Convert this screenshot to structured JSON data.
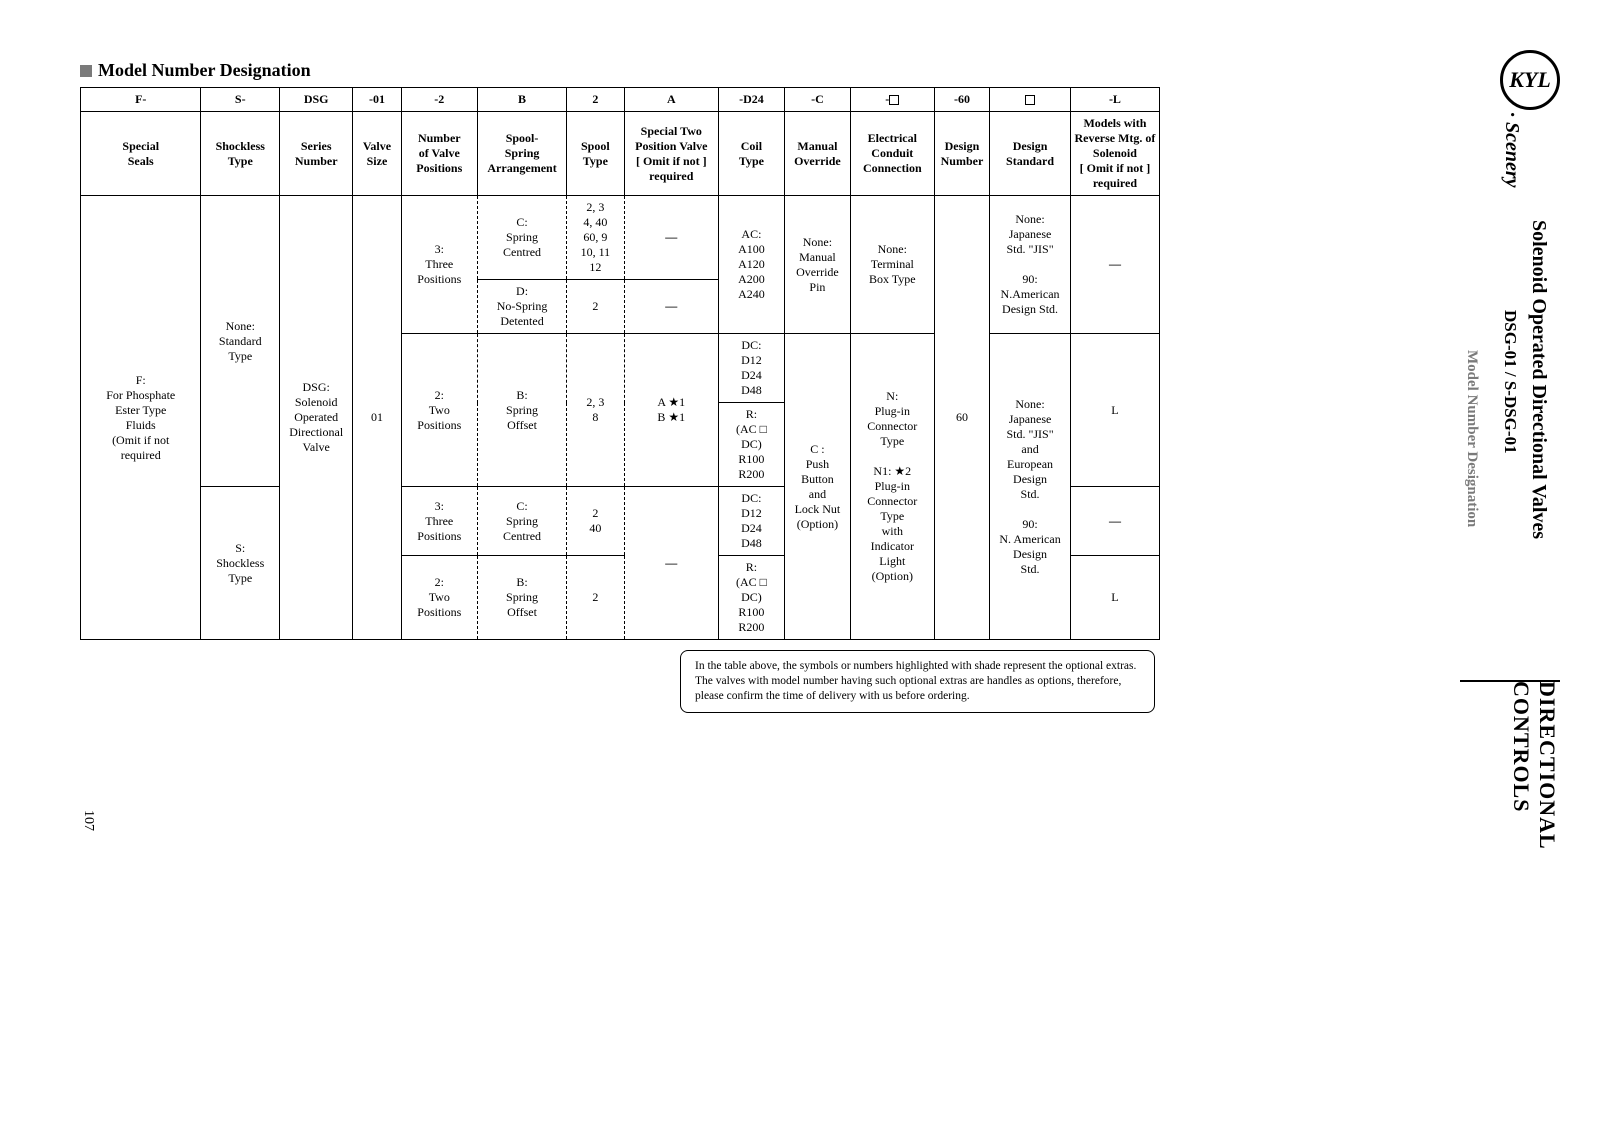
{
  "section_title": "Model Number Designation",
  "page_number": "107",
  "header_row1": [
    "F-",
    "S-",
    "DSG",
    "-01",
    "-2",
    "B",
    "2",
    "A",
    "-D24",
    "-C",
    "-□",
    "-60",
    "□",
    "-L"
  ],
  "header_row2": [
    "Special\nSeals",
    "Shockless\nType",
    "Series\nNumber",
    "Valve\nSize",
    "Number\nof Valve\nPositions",
    "Spool-\nSpring\nArrangement",
    "Spool\nType",
    "Special Two\nPosition Valve\n[ Omit if not ]\n  required",
    "Coil\nType",
    "Manual\nOverride",
    "Electrical\nConduit\nConnection",
    "Design\nNumber",
    "Design\nStandard",
    "Models with\nReverse Mtg. of\nSolenoid\n[ Omit if not ]\n  required"
  ],
  "col_F": "F:\nFor Phosphate\nEster Type\nFluids\n(Omit if not\nrequired",
  "col_S_none": "None:\nStandard\nType",
  "col_S_s": "S:\nShockless\nType",
  "col_DSG": "DSG:\nSolenoid\nOperated\nDirectional\nValve",
  "col_01": "01",
  "pos_3": "3:\nThree\nPositions",
  "pos_2": "2:\nTwo\nPositions",
  "spring_C": "C:\nSpring\nCentred",
  "spring_D": "D:\nNo-Spring\nDetented",
  "spring_B": "B:\nSpring\nOffset",
  "spool_a": "2, 3\n4, 40\n60, 9\n10, 11\n12",
  "spool_b": "2",
  "spool_c": "2, 3\n8",
  "spool_d": "2\n40",
  "spool_e": "2",
  "ab_mark": "A ★1\nB ★1",
  "dash_sym": "—",
  "coil_AC": "AC:\nA100\nA120\nA200\nA240",
  "coil_DC": "DC:\nD12\nD24\nD48",
  "coil_R": "R:\n(AC □\n   DC)\nR100\nR200",
  "coil_DC2": "DC:\nD12\nD24\nD48",
  "coil_R2": "R:\n(AC □\n   DC)\nR100\nR200",
  "manual_none": "None:\nManual\nOverride\nPin",
  "manual_C": "C :\nPush\nButton\nand\nLock Nut\n(Option)",
  "elec_none": "None:\nTerminal\nBox Type",
  "elec_N": "N:\nPlug-in\nConnector\nType\n\nN1: ★2\nPlug-in\nConnector\nType\nwith\nIndicator\nLight\n(Option)",
  "design_num": "60",
  "design_std_top": "None:\nJapanese\nStd. \"JIS\"\n\n90:\nN.American\nDesign Std.",
  "design_std_bot": "None:\nJapanese\nStd. \"JIS\"\nand\nEuropean\nDesign\nStd.\n\n90:\nN. American\nDesign\nStd.",
  "rev_L": "L",
  "note_text": "In the table above, the symbols or numbers highlighted with shade represent the optional extras. The valves with model number having such optional extras are handles as options, therefore, please confirm the time of delivery with us before ordering.",
  "sidebar": {
    "logo": "KYL",
    "brand": "· Scenery",
    "title1": "Solenoid Operated Directional Valves",
    "title2": "DSG-01 / S-DSG-01",
    "title3": "Model Number Designation",
    "corner": "DIRECTIONAL\nCONTROLS"
  },
  "colwidths_pct": [
    11.5,
    7.5,
    7,
    4.6,
    7.3,
    8.5,
    5.5,
    9,
    6.3,
    6.3,
    8,
    5.3,
    7.7,
    8.5
  ]
}
